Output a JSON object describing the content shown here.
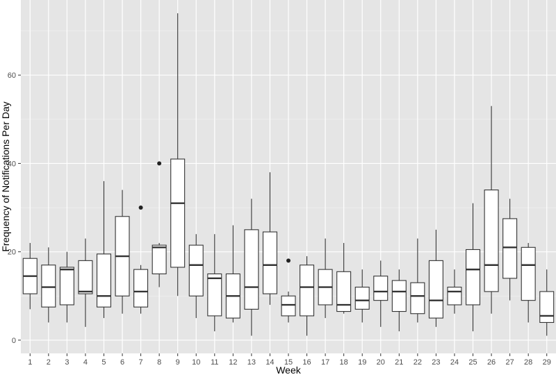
{
  "chart_data": {
    "type": "box",
    "xlabel": "Week",
    "ylabel": "Frequency of Notifications Per Day",
    "ylim": [
      -3,
      77
    ],
    "yticks": [
      0,
      20,
      40,
      60
    ],
    "grid": true,
    "categories": [
      "1",
      "2",
      "3",
      "4",
      "5",
      "6",
      "7",
      "8",
      "9",
      "10",
      "11",
      "12",
      "13",
      "14",
      "15",
      "16",
      "17",
      "18",
      "19",
      "20",
      "21",
      "22",
      "23",
      "24",
      "25",
      "26",
      "27",
      "28",
      "29"
    ],
    "boxes": [
      {
        "week": "1",
        "min": 7,
        "q1": 10.5,
        "median": 14.5,
        "q3": 18.5,
        "max": 22,
        "outliers": []
      },
      {
        "week": "2",
        "min": 4,
        "q1": 7.5,
        "median": 12,
        "q3": 17,
        "max": 21,
        "outliers": []
      },
      {
        "week": "3",
        "min": 4,
        "q1": 8,
        "median": 16,
        "q3": 16.5,
        "max": 20,
        "outliers": []
      },
      {
        "week": "4",
        "min": 3,
        "q1": 10.5,
        "median": 11,
        "q3": 18,
        "max": 23,
        "outliers": []
      },
      {
        "week": "5",
        "min": 5,
        "q1": 7.5,
        "median": 10,
        "q3": 19.5,
        "max": 36,
        "outliers": []
      },
      {
        "week": "6",
        "min": 6,
        "q1": 10,
        "median": 19,
        "q3": 28,
        "max": 34,
        "outliers": []
      },
      {
        "week": "7",
        "min": 6,
        "q1": 7.5,
        "median": 11,
        "q3": 16,
        "max": 17,
        "outliers": [
          30
        ]
      },
      {
        "week": "8",
        "min": 12,
        "q1": 15,
        "median": 21,
        "q3": 21.5,
        "max": 22,
        "outliers": [
          40
        ]
      },
      {
        "week": "9",
        "min": 10,
        "q1": 16.5,
        "median": 31,
        "q3": 41,
        "max": 74,
        "outliers": []
      },
      {
        "week": "10",
        "min": 5,
        "q1": 10,
        "median": 17,
        "q3": 21.5,
        "max": 24,
        "outliers": []
      },
      {
        "week": "11",
        "min": 2,
        "q1": 5.5,
        "median": 14,
        "q3": 15,
        "max": 24,
        "outliers": []
      },
      {
        "week": "12",
        "min": 4,
        "q1": 5,
        "median": 10,
        "q3": 15,
        "max": 26,
        "outliers": []
      },
      {
        "week": "13",
        "min": 1,
        "q1": 7,
        "median": 12,
        "q3": 25,
        "max": 32,
        "outliers": []
      },
      {
        "week": "14",
        "min": 8,
        "q1": 10.5,
        "median": 17,
        "q3": 24.5,
        "max": 38,
        "outliers": []
      },
      {
        "week": "15",
        "min": 4,
        "q1": 5.5,
        "median": 8,
        "q3": 10,
        "max": 11,
        "outliers": [
          18
        ]
      },
      {
        "week": "16",
        "min": 1,
        "q1": 5.5,
        "median": 12,
        "q3": 17,
        "max": 19,
        "outliers": []
      },
      {
        "week": "17",
        "min": 5,
        "q1": 8,
        "median": 12,
        "q3": 16,
        "max": 23,
        "outliers": []
      },
      {
        "week": "18",
        "min": 6,
        "q1": 6.5,
        "median": 8,
        "q3": 15.5,
        "max": 22,
        "outliers": []
      },
      {
        "week": "19",
        "min": 4,
        "q1": 7,
        "median": 9,
        "q3": 12,
        "max": 16,
        "outliers": []
      },
      {
        "week": "20",
        "min": 3,
        "q1": 9,
        "median": 11,
        "q3": 14.5,
        "max": 18,
        "outliers": []
      },
      {
        "week": "21",
        "min": 2,
        "q1": 6.5,
        "median": 11,
        "q3": 13.5,
        "max": 16,
        "outliers": []
      },
      {
        "week": "22",
        "min": 4,
        "q1": 6,
        "median": 10,
        "q3": 13,
        "max": 23,
        "outliers": []
      },
      {
        "week": "23",
        "min": 3,
        "q1": 5,
        "median": 9,
        "q3": 18,
        "max": 25,
        "outliers": []
      },
      {
        "week": "24",
        "min": 6,
        "q1": 8,
        "median": 11,
        "q3": 12,
        "max": 16,
        "outliers": []
      },
      {
        "week": "25",
        "min": 2,
        "q1": 8,
        "median": 16,
        "q3": 20.5,
        "max": 31,
        "outliers": []
      },
      {
        "week": "26",
        "min": 6,
        "q1": 11,
        "median": 17,
        "q3": 34,
        "max": 53,
        "outliers": []
      },
      {
        "week": "27",
        "min": 9,
        "q1": 14,
        "median": 21,
        "q3": 27.5,
        "max": 32,
        "outliers": []
      },
      {
        "week": "28",
        "min": 4,
        "q1": 9,
        "median": 17,
        "q3": 21,
        "max": 22,
        "outliers": []
      },
      {
        "week": "29",
        "min": 1,
        "q1": 4,
        "median": 5.5,
        "q3": 11,
        "max": 16,
        "outliers": []
      }
    ]
  }
}
